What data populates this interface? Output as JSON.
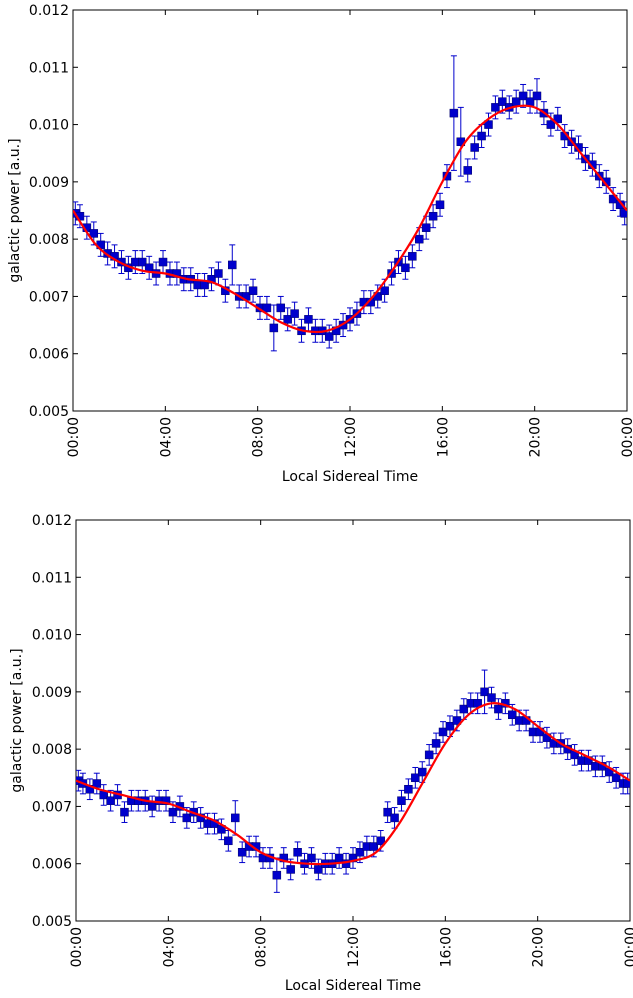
{
  "chart_data": [
    {
      "type": "scatter",
      "title": "",
      "xlabel": "Local Sidereal Time",
      "ylabel": "galactic power [a.u.]",
      "xlim": [
        0,
        24
      ],
      "ylim": [
        0.005,
        0.012
      ],
      "xticks": [
        "00:00",
        "04:00",
        "08:00",
        "12:00",
        "16:00",
        "20:00",
        "00:00"
      ],
      "yticks": [
        "0.005",
        "0.006",
        "0.007",
        "0.008",
        "0.009",
        "0.010",
        "0.011",
        "0.012"
      ],
      "grid": false,
      "colors": {
        "points": "#0000cc",
        "fit": "#ff0000"
      },
      "series": [
        {
          "kind": "measurements_with_error_bars",
          "x": [
            0.1,
            0.3,
            0.6,
            0.9,
            1.2,
            1.5,
            1.8,
            2.1,
            2.4,
            2.7,
            3.0,
            3.3,
            3.6,
            3.9,
            4.2,
            4.5,
            4.8,
            5.1,
            5.4,
            5.7,
            6.0,
            6.3,
            6.6,
            6.9,
            7.2,
            7.5,
            7.8,
            8.1,
            8.4,
            8.7,
            9.0,
            9.3,
            9.6,
            9.9,
            10.2,
            10.5,
            10.8,
            11.1,
            11.4,
            11.7,
            12.0,
            12.3,
            12.6,
            12.9,
            13.2,
            13.5,
            13.8,
            14.1,
            14.4,
            14.7,
            15.0,
            15.3,
            15.6,
            15.9,
            16.2,
            16.5,
            16.8,
            17.1,
            17.4,
            17.7,
            18.0,
            18.3,
            18.6,
            18.9,
            19.2,
            19.5,
            19.8,
            20.1,
            20.4,
            20.7,
            21.0,
            21.3,
            21.6,
            21.9,
            22.2,
            22.5,
            22.8,
            23.1,
            23.4,
            23.7,
            23.9
          ],
          "y": [
            0.00845,
            0.0084,
            0.0082,
            0.0081,
            0.0079,
            0.00775,
            0.0077,
            0.0076,
            0.0075,
            0.0076,
            0.0076,
            0.0075,
            0.0074,
            0.0076,
            0.0074,
            0.0074,
            0.0073,
            0.0073,
            0.0072,
            0.0072,
            0.0073,
            0.0074,
            0.0071,
            0.00755,
            0.007,
            0.007,
            0.0071,
            0.0068,
            0.0068,
            0.00645,
            0.0068,
            0.0066,
            0.0067,
            0.0064,
            0.0066,
            0.0064,
            0.0064,
            0.0063,
            0.0064,
            0.0065,
            0.0066,
            0.0067,
            0.0069,
            0.0069,
            0.007,
            0.0071,
            0.0074,
            0.0076,
            0.0075,
            0.0077,
            0.008,
            0.0082,
            0.0084,
            0.0086,
            0.0091,
            0.0102,
            0.0097,
            0.0092,
            0.0096,
            0.0098,
            0.01,
            0.0103,
            0.0104,
            0.0103,
            0.0104,
            0.0105,
            0.0104,
            0.0105,
            0.0102,
            0.01,
            0.0101,
            0.0098,
            0.0097,
            0.0096,
            0.0094,
            0.0093,
            0.0091,
            0.009,
            0.0087,
            0.0086,
            0.00845
          ],
          "yerr": [
            0.0002,
            0.0002,
            0.0002,
            0.0002,
            0.0002,
            0.0002,
            0.0002,
            0.0002,
            0.0002,
            0.0002,
            0.0002,
            0.0002,
            0.0002,
            0.0002,
            0.0002,
            0.0002,
            0.0002,
            0.0002,
            0.0002,
            0.0002,
            0.0002,
            0.0002,
            0.0002,
            0.00035,
            0.0002,
            0.0002,
            0.0002,
            0.0002,
            0.0002,
            0.0004,
            0.0002,
            0.0002,
            0.0002,
            0.0002,
            0.0002,
            0.0002,
            0.0002,
            0.0002,
            0.0002,
            0.0002,
            0.0002,
            0.0002,
            0.0002,
            0.0002,
            0.0002,
            0.0002,
            0.0002,
            0.0002,
            0.0002,
            0.0002,
            0.0002,
            0.0002,
            0.0002,
            0.0002,
            0.0002,
            0.001,
            0.0006,
            0.0002,
            0.0002,
            0.0002,
            0.0002,
            0.0002,
            0.0002,
            0.0002,
            0.0002,
            0.0002,
            0.0002,
            0.0003,
            0.0002,
            0.0002,
            0.0002,
            0.0002,
            0.0002,
            0.0002,
            0.0002,
            0.0002,
            0.0002,
            0.0002,
            0.0002,
            0.0002,
            0.0002
          ]
        },
        {
          "kind": "fit_curve",
          "x": [
            0,
            1,
            2,
            3,
            4,
            5,
            6,
            7,
            8,
            9,
            10,
            11,
            12,
            13,
            14,
            15,
            16,
            17,
            18,
            19,
            20,
            21,
            22,
            23,
            24
          ],
          "y": [
            0.0085,
            0.0079,
            0.0076,
            0.00745,
            0.0074,
            0.0073,
            0.00725,
            0.00705,
            0.0068,
            0.00655,
            0.0064,
            0.0064,
            0.0066,
            0.007,
            0.00755,
            0.0082,
            0.009,
            0.0097,
            0.0101,
            0.0103,
            0.0103,
            0.01,
            0.0095,
            0.009,
            0.0085
          ]
        }
      ]
    },
    {
      "type": "scatter",
      "title": "",
      "xlabel": "Local Sidereal Time",
      "ylabel": "galactic power [a.u.]",
      "xlim": [
        0,
        24
      ],
      "ylim": [
        0.005,
        0.012
      ],
      "xticks": [
        "00:00",
        "04:00",
        "08:00",
        "12:00",
        "16:00",
        "20:00",
        "00:00"
      ],
      "yticks": [
        "0.005",
        "0.006",
        "0.007",
        "0.008",
        "0.009",
        "0.010",
        "0.011",
        "0.012"
      ],
      "grid": false,
      "colors": {
        "points": "#0000cc",
        "fit": "#ff0000"
      },
      "series": [
        {
          "kind": "measurements_with_error_bars",
          "x": [
            0.1,
            0.3,
            0.6,
            0.9,
            1.2,
            1.5,
            1.8,
            2.1,
            2.4,
            2.7,
            3.0,
            3.3,
            3.6,
            3.9,
            4.2,
            4.5,
            4.8,
            5.1,
            5.4,
            5.7,
            6.0,
            6.3,
            6.6,
            6.9,
            7.2,
            7.5,
            7.8,
            8.1,
            8.4,
            8.7,
            9.0,
            9.3,
            9.6,
            9.9,
            10.2,
            10.5,
            10.8,
            11.1,
            11.4,
            11.7,
            12.0,
            12.3,
            12.6,
            12.9,
            13.2,
            13.5,
            13.8,
            14.1,
            14.4,
            14.7,
            15.0,
            15.3,
            15.6,
            15.9,
            16.2,
            16.5,
            16.8,
            17.1,
            17.4,
            17.7,
            18.0,
            18.3,
            18.6,
            18.9,
            19.2,
            19.5,
            19.8,
            20.1,
            20.4,
            20.7,
            21.0,
            21.3,
            21.6,
            21.9,
            22.2,
            22.5,
            22.8,
            23.1,
            23.4,
            23.7,
            23.9
          ],
          "y": [
            0.00745,
            0.0074,
            0.0073,
            0.0074,
            0.0072,
            0.0071,
            0.0072,
            0.0069,
            0.0071,
            0.0071,
            0.0071,
            0.007,
            0.0071,
            0.0071,
            0.0069,
            0.007,
            0.0068,
            0.0069,
            0.0068,
            0.0067,
            0.0067,
            0.0066,
            0.0064,
            0.0068,
            0.0062,
            0.0063,
            0.0063,
            0.0061,
            0.0061,
            0.0058,
            0.0061,
            0.0059,
            0.0062,
            0.006,
            0.0061,
            0.0059,
            0.006,
            0.006,
            0.0061,
            0.006,
            0.0061,
            0.0062,
            0.0063,
            0.0063,
            0.0064,
            0.0069,
            0.0068,
            0.0071,
            0.0073,
            0.0075,
            0.0076,
            0.0079,
            0.0081,
            0.0083,
            0.0084,
            0.0085,
            0.0087,
            0.0088,
            0.0088,
            0.009,
            0.0089,
            0.0087,
            0.0088,
            0.0086,
            0.0085,
            0.0085,
            0.0083,
            0.0083,
            0.0082,
            0.0081,
            0.0081,
            0.008,
            0.0079,
            0.0078,
            0.0078,
            0.0077,
            0.0077,
            0.0076,
            0.0075,
            0.0074,
            0.0074
          ],
          "yerr": [
            0.00018,
            0.00018,
            0.00018,
            0.00018,
            0.00018,
            0.00018,
            0.00018,
            0.00018,
            0.00018,
            0.00018,
            0.00018,
            0.00018,
            0.00018,
            0.00018,
            0.00018,
            0.00018,
            0.00018,
            0.00018,
            0.00018,
            0.00018,
            0.00018,
            0.00018,
            0.00018,
            0.0003,
            0.00018,
            0.00018,
            0.00018,
            0.00018,
            0.00018,
            0.0003,
            0.00018,
            0.00018,
            0.00018,
            0.00018,
            0.00018,
            0.00018,
            0.00018,
            0.00018,
            0.00018,
            0.00018,
            0.00018,
            0.00018,
            0.00018,
            0.00018,
            0.00018,
            0.00018,
            0.00018,
            0.00018,
            0.00018,
            0.00018,
            0.00018,
            0.00018,
            0.00018,
            0.00018,
            0.00018,
            0.00018,
            0.00018,
            0.00018,
            0.00018,
            0.00038,
            0.00018,
            0.00018,
            0.00018,
            0.00018,
            0.00018,
            0.00018,
            0.00018,
            0.00018,
            0.00018,
            0.00018,
            0.00018,
            0.00018,
            0.00018,
            0.00018,
            0.00018,
            0.00018,
            0.00018,
            0.00018,
            0.00018,
            0.00018,
            0.00018
          ]
        },
        {
          "kind": "fit_curve",
          "x": [
            0,
            1,
            2,
            3,
            4,
            5,
            6,
            7,
            8,
            9,
            10,
            11,
            12,
            13,
            14,
            15,
            16,
            17,
            18,
            19,
            20,
            21,
            22,
            23,
            24
          ],
          "y": [
            0.00745,
            0.0073,
            0.0072,
            0.0071,
            0.00705,
            0.0069,
            0.00675,
            0.0065,
            0.0062,
            0.00605,
            0.006,
            0.006,
            0.00605,
            0.0062,
            0.0067,
            0.0074,
            0.0081,
            0.0086,
            0.0088,
            0.0087,
            0.0084,
            0.0081,
            0.0079,
            0.0077,
            0.00745
          ]
        }
      ]
    }
  ]
}
